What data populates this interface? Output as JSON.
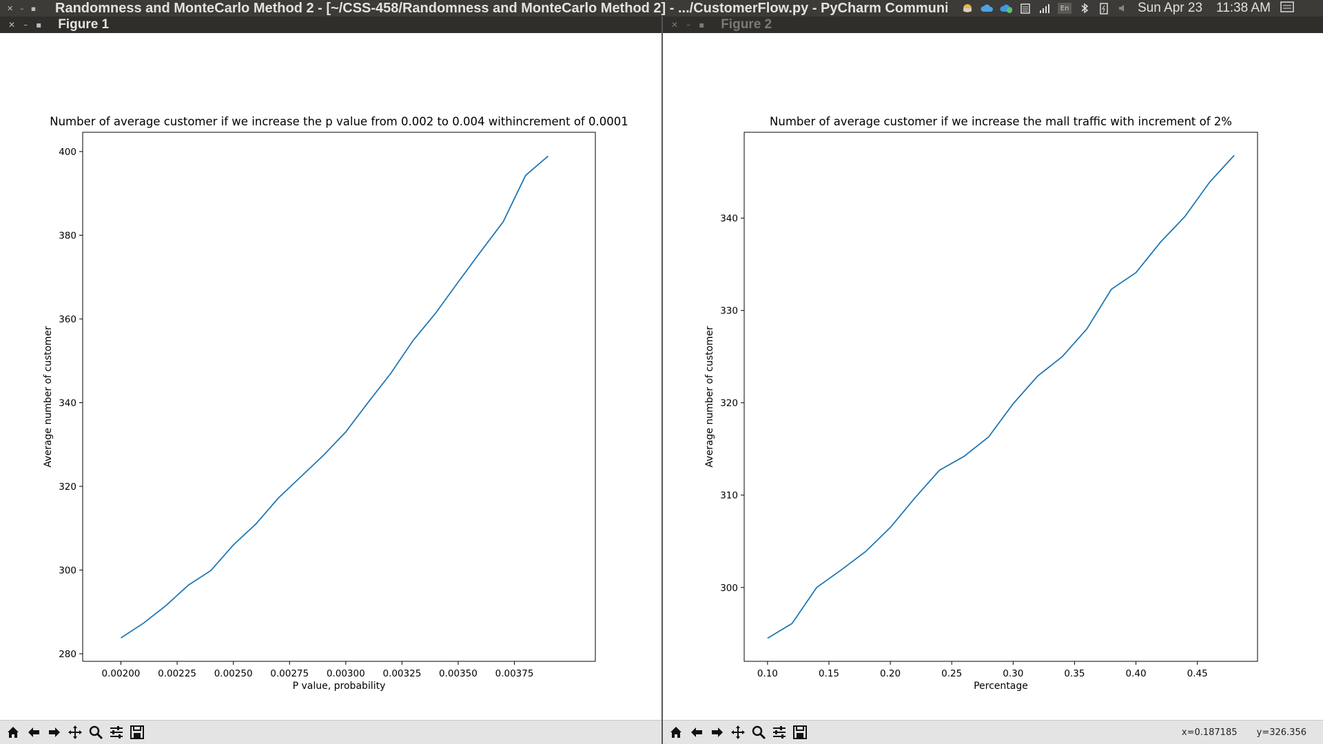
{
  "desktop": {
    "app_title": "Randomness and MonteCarlo Method 2 - [~/CSS-458/Randomness and MonteCarlo Method 2] - .../CustomerFlow.py - PyCharm Communi",
    "date": "Sun Apr 23",
    "time": "11:38 AM",
    "keyboard_layout": "En",
    "tray_icons": [
      "weather-icon",
      "cloud-icon",
      "cloud-sync-icon",
      "clipboard-icon",
      "signal-icon",
      "keyboard-layout-icon",
      "bluetooth-icon",
      "battery-icon",
      "volume-icon",
      "notification-icon"
    ]
  },
  "windows": [
    {
      "title": "Figure 1",
      "toolbar": [
        "home-icon",
        "back-icon",
        "forward-icon",
        "pan-icon",
        "zoom-icon",
        "configure-subplots-icon",
        "save-icon"
      ],
      "coords": {
        "x": "",
        "y": ""
      },
      "chart_data": {
        "type": "line",
        "title": "Number of average customer if we increase the p value from 0.002 to 0.004 withincrement of 0.0001",
        "xlabel": "P value, probability",
        "ylabel": "Average number of customer",
        "xlim": [
          0.00183,
          0.00411
        ],
        "ylim": [
          278.2,
          404.6
        ],
        "xticks": [
          "0.00200",
          "0.00225",
          "0.00250",
          "0.00275",
          "0.00300",
          "0.00325",
          "0.00350",
          "0.00375"
        ],
        "yticks": [
          "280",
          "300",
          "320",
          "340",
          "360",
          "380",
          "400"
        ],
        "color": "#1f77b4",
        "x": [
          0.002,
          0.0021,
          0.0022,
          0.0023,
          0.0024,
          0.0025,
          0.0026,
          0.0027,
          0.0028,
          0.0029,
          0.003,
          0.0031,
          0.0032,
          0.0033,
          0.0034,
          0.0035,
          0.0036,
          0.0037,
          0.0038,
          0.0039
        ],
        "y": [
          283.8,
          287.3,
          291.5,
          296.4,
          299.9,
          306.0,
          311.0,
          317.2,
          322.3,
          327.4,
          333.0,
          340.1,
          347.0,
          354.9,
          361.4,
          368.8,
          376.1,
          383.2,
          394.3,
          398.9
        ]
      }
    },
    {
      "title": "Figure 2",
      "toolbar": [
        "home-icon",
        "back-icon",
        "forward-icon",
        "pan-icon",
        "zoom-icon",
        "configure-subplots-icon",
        "save-icon"
      ],
      "coords": {
        "x": "x=0.187185",
        "y": "y=326.356"
      },
      "chart_data": {
        "type": "line",
        "title": "Number of average customer if we increase the mall traffic with increment of 2%",
        "xlabel": "Percentage",
        "ylabel": "Average number of customer",
        "xlim": [
          0.081,
          0.499
        ],
        "ylim": [
          292.0,
          349.3
        ],
        "xticks": [
          "0.10",
          "0.15",
          "0.20",
          "0.25",
          "0.30",
          "0.35",
          "0.40",
          "0.45"
        ],
        "yticks": [
          "300",
          "310",
          "320",
          "330",
          "340"
        ],
        "color": "#1f77b4",
        "x": [
          0.1,
          0.12,
          0.14,
          0.16,
          0.18,
          0.2,
          0.22,
          0.24,
          0.26,
          0.28,
          0.3,
          0.32,
          0.34,
          0.36,
          0.38,
          0.4,
          0.42,
          0.44,
          0.46,
          0.48
        ],
        "y": [
          294.5,
          296.1,
          300.0,
          301.9,
          303.9,
          306.5,
          309.7,
          312.7,
          314.2,
          316.3,
          319.9,
          322.9,
          325.0,
          328.0,
          332.3,
          334.1,
          337.4,
          340.2,
          343.9,
          346.8
        ]
      }
    }
  ]
}
